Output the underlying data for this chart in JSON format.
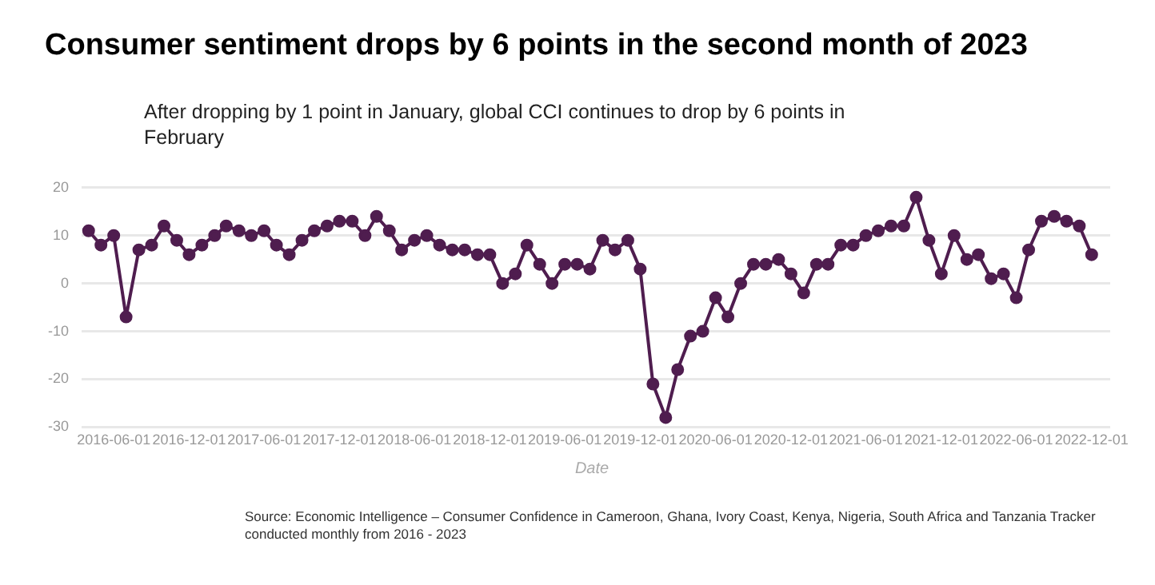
{
  "chart_data": {
    "type": "line",
    "title": "Consumer sentiment drops by 6 points in the second month of 2023",
    "subtitle": "After dropping by 1 point in January, global CCI continues to drop by 6 points in February",
    "xlabel": "Date",
    "annotations": [
      "Source: Economic Intelligence – Consumer Confidence in Cameroon, Ghana, Ivory Coast, Kenya, Nigeria, South Africa and Tanzania Tracker conducted monthly from 2016 - 2023"
    ],
    "x": [
      "2016-04",
      "2016-05",
      "2016-06",
      "2016-07",
      "2016-08",
      "2016-09",
      "2016-10",
      "2016-11",
      "2016-12",
      "2017-01",
      "2017-02",
      "2017-03",
      "2017-04",
      "2017-05",
      "2017-06",
      "2017-07",
      "2017-08",
      "2017-09",
      "2017-10",
      "2017-11",
      "2017-12",
      "2018-01",
      "2018-02",
      "2018-03",
      "2018-04",
      "2018-05",
      "2018-06",
      "2018-07",
      "2018-08",
      "2018-09",
      "2018-10",
      "2018-11",
      "2018-12",
      "2019-01",
      "2019-02",
      "2019-03",
      "2019-04",
      "2019-05",
      "2019-06",
      "2019-07",
      "2019-08",
      "2019-09",
      "2019-10",
      "2019-11",
      "2019-12",
      "2020-01",
      "2020-02",
      "2020-03",
      "2020-04",
      "2020-05",
      "2020-06",
      "2020-07",
      "2020-08",
      "2020-09",
      "2020-10",
      "2020-11",
      "2020-12",
      "2021-01",
      "2021-02",
      "2021-03",
      "2021-04",
      "2021-05",
      "2021-06",
      "2021-07",
      "2021-08",
      "2021-09",
      "2021-10",
      "2021-11",
      "2021-12",
      "2022-01",
      "2022-02",
      "2022-03",
      "2022-04",
      "2022-05",
      "2022-06",
      "2022-07",
      "2022-08",
      "2022-09",
      "2022-10",
      "2022-11",
      "2022-12"
    ],
    "series": [
      {
        "color": "#4f1d4f",
        "values": [
          11,
          8,
          10,
          -7,
          7,
          8,
          12,
          9,
          6,
          8,
          10,
          12,
          11,
          10,
          11,
          8,
          6,
          9,
          11,
          12,
          13,
          13,
          10,
          14,
          11,
          7,
          9,
          10,
          8,
          7,
          7,
          6,
          6,
          0,
          2,
          8,
          4,
          0,
          4,
          4,
          3,
          9,
          7,
          9,
          3,
          -21,
          -28,
          -18,
          -11,
          -10,
          -3,
          -7,
          0,
          4,
          4,
          5,
          2,
          -2,
          4,
          4,
          8,
          8,
          10,
          11,
          12,
          12,
          18,
          9,
          2,
          10,
          5,
          6,
          1,
          2,
          -3,
          7,
          13,
          14,
          13,
          12,
          6
        ]
      }
    ],
    "xlim": [
      "2016-03-15",
      "2023-01-15"
    ],
    "xticks": [
      "2016-06-01",
      "2016-12-01",
      "2017-06-01",
      "2017-12-01",
      "2018-06-01",
      "2018-12-01",
      "2019-06-01",
      "2019-12-01",
      "2020-06-01",
      "2020-12-01",
      "2021-06-01",
      "2021-12-01",
      "2022-06-01",
      "2022-12-01"
    ],
    "ylim": [
      -30,
      20
    ],
    "yticks": [
      -30,
      -20,
      -10,
      0,
      10,
      20
    ],
    "grid": "y",
    "legend": false,
    "marker": "circle",
    "line_style": "solid"
  }
}
